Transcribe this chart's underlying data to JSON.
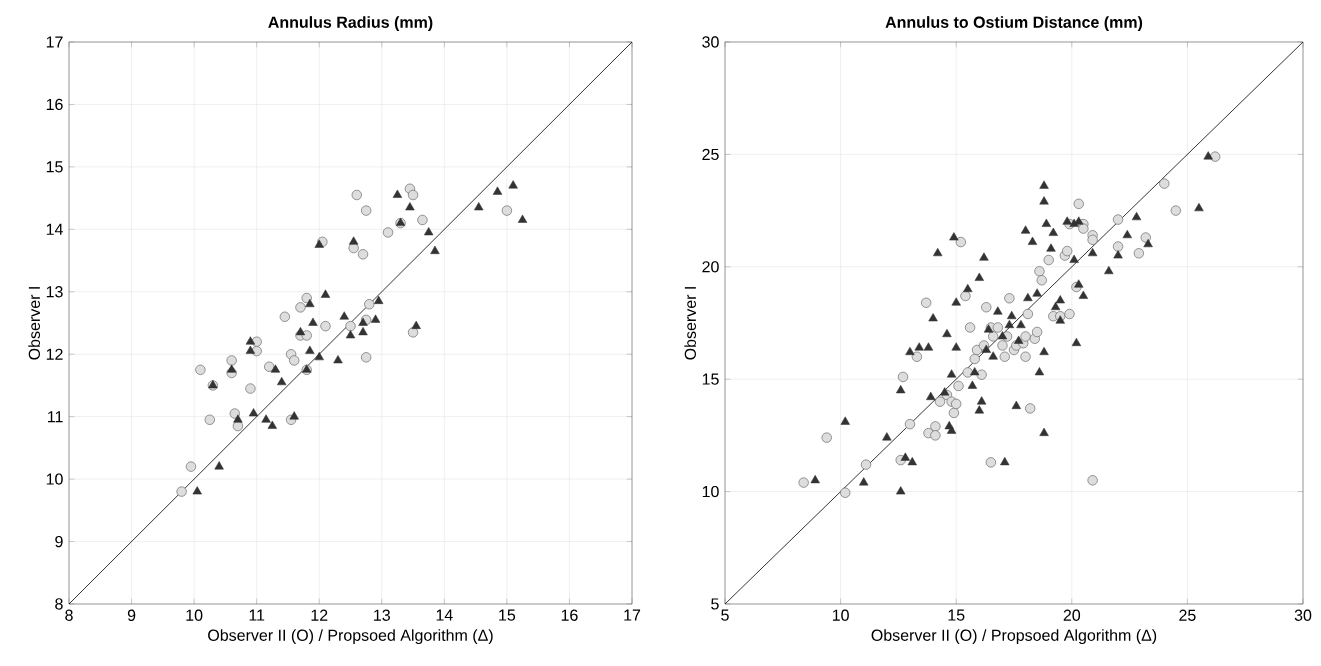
{
  "chart_data": [
    {
      "type": "scatter",
      "title": "Annulus Radius (mm)",
      "xlabel": "Observer II (O) / Propsoed Algorithm (Δ)",
      "ylabel": "Observer I",
      "xlim": [
        8,
        17
      ],
      "ylim": [
        8,
        17
      ],
      "xticks": [
        8,
        9,
        10,
        11,
        12,
        13,
        14,
        15,
        16,
        17
      ],
      "yticks": [
        8,
        9,
        10,
        11,
        12,
        13,
        14,
        15,
        16,
        17
      ],
      "grid": true,
      "series": [
        {
          "type": "line",
          "color": "#000000",
          "marker": "none",
          "x": [
            8,
            17
          ],
          "values": [
            8,
            17
          ]
        },
        {
          "color": "#dddddd",
          "marker": "circle",
          "x": [
            9.8,
            9.95,
            10.1,
            10.25,
            10.3,
            10.6,
            10.6,
            10.65,
            10.7,
            10.9,
            11.0,
            11.0,
            11.2,
            11.45,
            11.55,
            11.55,
            11.6,
            11.7,
            11.7,
            11.8,
            11.8,
            11.8,
            12.05,
            12.1,
            12.5,
            12.55,
            12.6,
            12.7,
            12.75,
            12.75,
            12.75,
            12.8,
            13.1,
            13.3,
            13.45,
            13.5,
            13.5,
            13.65,
            15.0
          ],
          "values": [
            9.8,
            10.2,
            11.75,
            10.95,
            11.5,
            11.9,
            11.7,
            11.05,
            10.85,
            11.45,
            12.2,
            12.05,
            11.8,
            12.6,
            12.0,
            10.95,
            11.9,
            12.3,
            12.75,
            12.3,
            12.9,
            11.75,
            13.8,
            12.45,
            12.45,
            13.7,
            14.55,
            13.6,
            14.3,
            12.55,
            11.95,
            12.8,
            13.95,
            14.1,
            14.65,
            14.55,
            12.35,
            14.15,
            14.3
          ]
        },
        {
          "color": "#333333",
          "marker": "triangle",
          "x": [
            10.05,
            10.3,
            10.4,
            10.6,
            10.7,
            10.9,
            10.9,
            10.95,
            11.15,
            11.25,
            11.3,
            11.4,
            11.6,
            11.7,
            11.8,
            11.85,
            11.85,
            11.9,
            12.0,
            12.0,
            12.1,
            12.3,
            12.4,
            12.5,
            12.55,
            12.7,
            12.7,
            12.9,
            12.95,
            13.25,
            13.3,
            13.45,
            13.55,
            13.75,
            13.85,
            14.55,
            14.85,
            15.1,
            15.25
          ],
          "values": [
            9.8,
            11.5,
            10.2,
            11.75,
            10.95,
            12.2,
            12.05,
            11.05,
            10.95,
            10.85,
            11.75,
            11.55,
            11.0,
            12.35,
            11.75,
            12.05,
            12.8,
            12.5,
            13.75,
            11.95,
            12.95,
            11.9,
            12.6,
            12.3,
            13.8,
            12.35,
            12.5,
            12.55,
            12.85,
            14.55,
            14.1,
            14.35,
            12.45,
            13.95,
            13.65,
            14.35,
            14.6,
            14.7,
            14.15
          ]
        }
      ]
    },
    {
      "type": "scatter",
      "title": "Annulus to Ostium Distance (mm)",
      "xlabel": "Observer II (O) / Propsoed Algorithm (Δ)",
      "ylabel": "Observer I",
      "xlim": [
        5,
        30
      ],
      "ylim": [
        5,
        30
      ],
      "xticks": [
        5,
        10,
        15,
        20,
        25,
        30
      ],
      "yticks": [
        5,
        10,
        15,
        20,
        25,
        30
      ],
      "grid": true,
      "series": [
        {
          "type": "line",
          "color": "#000000",
          "marker": "none",
          "x": [
            5,
            30
          ],
          "values": [
            5,
            30
          ]
        },
        {
          "color": "#dddddd",
          "marker": "circle",
          "x": [
            8.4,
            9.4,
            10.2,
            11.1,
            12.6,
            12.7,
            13.0,
            13.3,
            13.7,
            13.8,
            14.1,
            14.1,
            14.3,
            14.6,
            14.8,
            14.9,
            15.0,
            15.1,
            15.2,
            15.4,
            15.5,
            15.6,
            15.8,
            15.9,
            16.1,
            16.2,
            16.3,
            16.5,
            16.5,
            16.6,
            16.8,
            17.0,
            17.1,
            17.2,
            17.3,
            17.5,
            17.6,
            17.9,
            18.0,
            18.0,
            18.1,
            18.2,
            18.4,
            18.5,
            18.6,
            18.7,
            19.0,
            19.2,
            19.5,
            19.7,
            19.8,
            19.9,
            19.9,
            20.2,
            20.3,
            20.5,
            20.5,
            20.9,
            20.9,
            20.9,
            22.0,
            22.0,
            22.9,
            23.2,
            24.0,
            24.5,
            26.2
          ],
          "values": [
            10.4,
            12.4,
            9.95,
            11.2,
            11.4,
            15.1,
            13.0,
            16.0,
            18.4,
            12.6,
            12.9,
            12.5,
            14.0,
            14.3,
            14.0,
            13.5,
            13.9,
            14.7,
            21.1,
            18.7,
            15.3,
            17.3,
            15.9,
            16.3,
            15.2,
            16.5,
            18.2,
            17.3,
            11.3,
            16.9,
            17.3,
            16.5,
            16.0,
            16.9,
            18.6,
            16.3,
            16.5,
            16.6,
            16.0,
            16.9,
            17.9,
            13.7,
            16.8,
            17.1,
            19.8,
            19.4,
            20.3,
            17.8,
            17.8,
            20.5,
            20.7,
            21.9,
            17.9,
            19.1,
            22.8,
            21.9,
            21.7,
            21.4,
            21.2,
            10.5,
            22.1,
            20.9,
            20.6,
            21.3,
            23.7,
            22.5,
            24.9
          ]
        },
        {
          "color": "#333333",
          "marker": "triangle",
          "x": [
            8.9,
            10.2,
            11.0,
            12.0,
            12.6,
            12.6,
            12.8,
            13.0,
            13.1,
            13.4,
            13.8,
            13.9,
            14.0,
            14.2,
            14.5,
            14.6,
            14.7,
            14.8,
            14.8,
            14.9,
            15.0,
            15.0,
            15.5,
            15.7,
            15.8,
            16.0,
            16.0,
            16.1,
            16.2,
            16.3,
            16.4,
            16.6,
            16.8,
            17.0,
            17.1,
            17.3,
            17.4,
            17.6,
            17.7,
            17.8,
            18.0,
            18.1,
            18.3,
            18.5,
            18.6,
            18.8,
            18.8,
            18.8,
            18.8,
            18.9,
            19.1,
            19.2,
            19.3,
            19.5,
            19.5,
            19.8,
            20.1,
            20.1,
            20.2,
            20.3,
            20.3,
            20.5,
            20.9,
            21.6,
            22.0,
            22.4,
            22.8,
            23.3,
            25.5,
            25.9
          ],
          "values": [
            10.5,
            13.1,
            10.4,
            12.4,
            10.0,
            14.5,
            11.5,
            16.2,
            11.3,
            16.4,
            16.4,
            14.2,
            17.7,
            20.6,
            14.4,
            17.0,
            12.9,
            15.2,
            12.7,
            21.3,
            18.4,
            16.4,
            19.0,
            14.7,
            15.3,
            19.5,
            13.6,
            14.0,
            20.4,
            16.3,
            17.2,
            16.0,
            18.0,
            16.9,
            11.3,
            17.4,
            17.8,
            13.8,
            16.7,
            17.4,
            21.6,
            18.6,
            21.1,
            18.8,
            15.3,
            16.2,
            23.6,
            22.9,
            12.6,
            21.9,
            20.8,
            21.5,
            18.2,
            18.5,
            17.6,
            22.0,
            21.9,
            20.3,
            16.6,
            19.2,
            22.0,
            18.7,
            20.6,
            19.8,
            20.5,
            21.4,
            22.2,
            21.0,
            22.6,
            24.9
          ]
        }
      ]
    }
  ]
}
